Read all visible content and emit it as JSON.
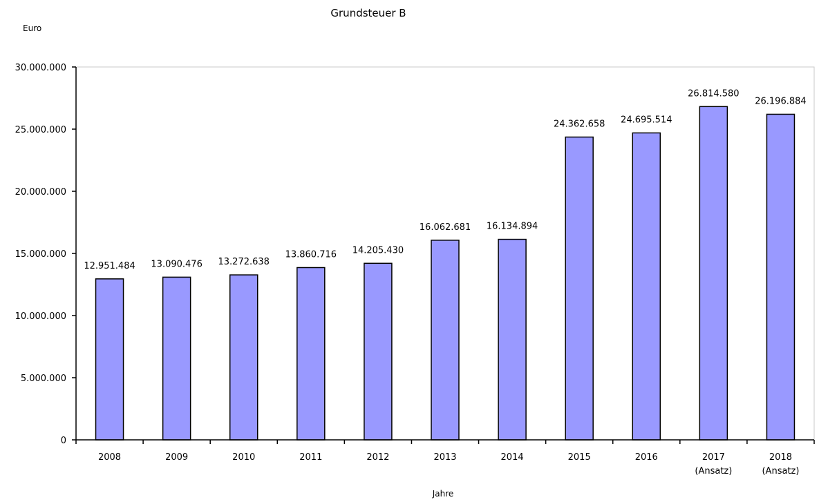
{
  "chart_data": {
    "type": "bar",
    "title": "Grundsteuer B",
    "ylabel": "Euro",
    "xlabel": "Jahre",
    "categories": [
      [
        "2008"
      ],
      [
        "2009"
      ],
      [
        "2010"
      ],
      [
        "2011"
      ],
      [
        "2012"
      ],
      [
        "2013"
      ],
      [
        "2014"
      ],
      [
        "2015"
      ],
      [
        "2016"
      ],
      [
        "2017",
        "(Ansatz)"
      ],
      [
        "2018",
        "(Ansatz)"
      ]
    ],
    "values": [
      12951484,
      13090476,
      13272638,
      13860716,
      14205430,
      16062681,
      16134894,
      24362658,
      24695514,
      26814580,
      26196884
    ],
    "value_labels": [
      "12.951.484",
      "13.090.476",
      "13.272.638",
      "13.860.716",
      "14.205.430",
      "16.062.681",
      "16.134.894",
      "24.362.658",
      "24.695.514",
      "26.814.580",
      "26.196.884"
    ],
    "yticks": [
      0,
      5000000,
      10000000,
      15000000,
      20000000,
      25000000,
      30000000
    ],
    "ytick_labels": [
      "0",
      "5.000.000",
      "10.000.000",
      "15.000.000",
      "20.000.000",
      "25.000.000",
      "30.000.000"
    ],
    "ylim": [
      0,
      30000000
    ],
    "grid": false,
    "legend": "none",
    "bar_color": "#9999ff",
    "bar_edge_color": "#000000"
  }
}
